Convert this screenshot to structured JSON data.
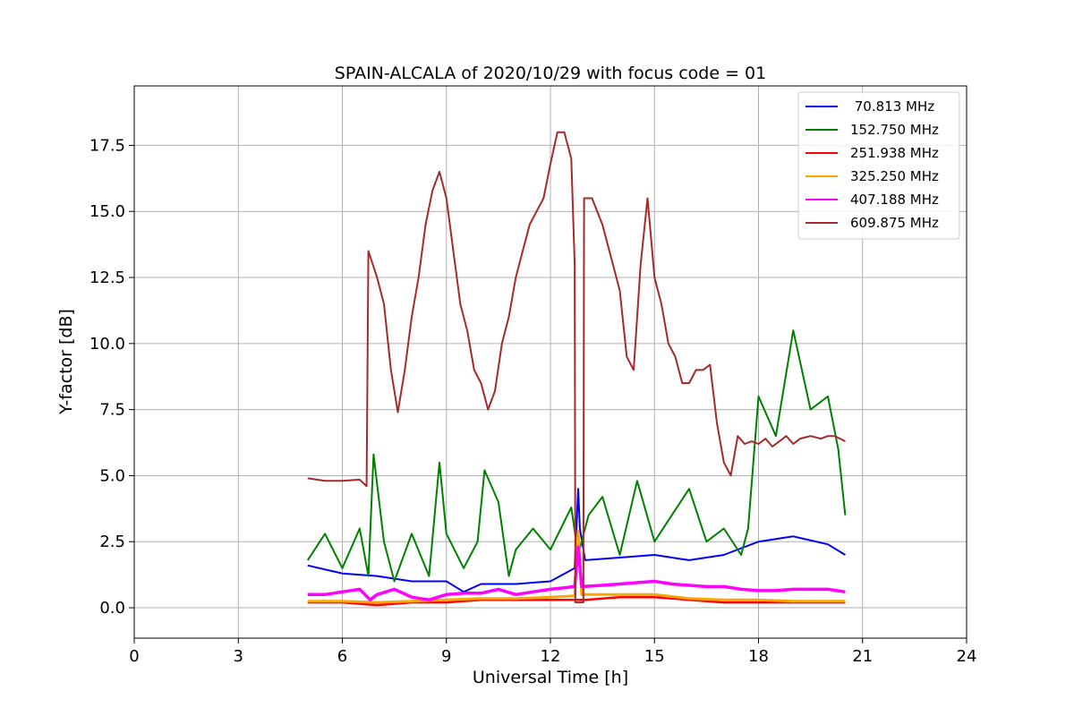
{
  "chart_data": {
    "type": "line",
    "title": "SPAIN-ALCALA of 2020/10/29 with focus code = 01",
    "xlabel": "Universal Time [h]",
    "ylabel": "Y-factor [dB]",
    "xlim": [
      0,
      24
    ],
    "ylim": [
      -1.15,
      19.75
    ],
    "xticks": [
      0,
      3,
      6,
      9,
      12,
      15,
      18,
      21,
      24
    ],
    "xtick_labels": [
      "0",
      "3",
      "6",
      "9",
      "12",
      "15",
      "18",
      "21",
      "24"
    ],
    "yticks": [
      0.0,
      2.5,
      5.0,
      7.5,
      10.0,
      12.5,
      15.0,
      17.5
    ],
    "ytick_labels": [
      "0.0",
      "2.5",
      "5.0",
      "7.5",
      "10.0",
      "12.5",
      "15.0",
      "17.5"
    ],
    "grid": true,
    "legend_position": "top-right",
    "series": [
      {
        "name": " 70.813 MHz",
        "color": "#0000ff",
        "points": [
          [
            5.0,
            1.6
          ],
          [
            6.0,
            1.3
          ],
          [
            7.0,
            1.2
          ],
          [
            8.0,
            1.0
          ],
          [
            9.0,
            1.0
          ],
          [
            9.5,
            0.6
          ],
          [
            10.0,
            0.9
          ],
          [
            11.0,
            0.9
          ],
          [
            12.0,
            1.0
          ],
          [
            12.7,
            1.5
          ],
          [
            12.8,
            4.5
          ],
          [
            12.85,
            3.0
          ],
          [
            13.0,
            1.8
          ],
          [
            14.0,
            1.9
          ],
          [
            15.0,
            2.0
          ],
          [
            16.0,
            1.8
          ],
          [
            17.0,
            2.0
          ],
          [
            18.0,
            2.5
          ],
          [
            19.0,
            2.7
          ],
          [
            20.0,
            2.4
          ],
          [
            20.5,
            2.0
          ]
        ]
      },
      {
        "name": "152.750 MHz",
        "color": "#008000",
        "points": [
          [
            5.0,
            1.8
          ],
          [
            5.5,
            2.8
          ],
          [
            6.0,
            1.5
          ],
          [
            6.5,
            3.0
          ],
          [
            6.75,
            1.2
          ],
          [
            6.9,
            5.8
          ],
          [
            7.2,
            2.5
          ],
          [
            7.5,
            1.0
          ],
          [
            8.0,
            2.8
          ],
          [
            8.5,
            1.2
          ],
          [
            8.8,
            5.5
          ],
          [
            9.0,
            2.8
          ],
          [
            9.5,
            1.5
          ],
          [
            9.9,
            2.5
          ],
          [
            10.1,
            5.2
          ],
          [
            10.5,
            4.0
          ],
          [
            10.8,
            1.2
          ],
          [
            11.0,
            2.2
          ],
          [
            11.5,
            3.0
          ],
          [
            12.0,
            2.2
          ],
          [
            12.6,
            3.8
          ],
          [
            12.8,
            2.0
          ],
          [
            13.1,
            3.5
          ],
          [
            13.5,
            4.2
          ],
          [
            14.0,
            2.0
          ],
          [
            14.5,
            4.8
          ],
          [
            15.0,
            2.5
          ],
          [
            15.5,
            3.5
          ],
          [
            16.0,
            4.5
          ],
          [
            16.5,
            2.5
          ],
          [
            17.0,
            3.0
          ],
          [
            17.5,
            2.0
          ],
          [
            17.7,
            3.0
          ],
          [
            18.0,
            8.0
          ],
          [
            18.5,
            6.5
          ],
          [
            19.0,
            10.5
          ],
          [
            19.5,
            7.5
          ],
          [
            20.0,
            8.0
          ],
          [
            20.3,
            6.0
          ],
          [
            20.5,
            3.5
          ]
        ]
      },
      {
        "name": "251.938 MHz",
        "color": "#ff0000",
        "points": [
          [
            5.0,
            0.2
          ],
          [
            6.0,
            0.2
          ],
          [
            7.0,
            0.1
          ],
          [
            8.0,
            0.2
          ],
          [
            9.0,
            0.2
          ],
          [
            10.0,
            0.3
          ],
          [
            11.0,
            0.3
          ],
          [
            12.0,
            0.3
          ],
          [
            12.7,
            0.3
          ],
          [
            13.0,
            0.3
          ],
          [
            14.0,
            0.4
          ],
          [
            15.0,
            0.4
          ],
          [
            16.0,
            0.3
          ],
          [
            17.0,
            0.2
          ],
          [
            18.0,
            0.2
          ],
          [
            19.0,
            0.2
          ],
          [
            20.0,
            0.2
          ],
          [
            20.5,
            0.2
          ]
        ]
      },
      {
        "name": "325.250 MHz",
        "color": "#ffa500",
        "points": [
          [
            5.0,
            0.25
          ],
          [
            6.0,
            0.25
          ],
          [
            7.0,
            0.2
          ],
          [
            8.0,
            0.25
          ],
          [
            9.0,
            0.3
          ],
          [
            10.0,
            0.35
          ],
          [
            11.0,
            0.35
          ],
          [
            12.0,
            0.4
          ],
          [
            12.7,
            0.45
          ],
          [
            12.8,
            2.9
          ],
          [
            12.9,
            0.5
          ],
          [
            13.0,
            0.5
          ],
          [
            14.0,
            0.5
          ],
          [
            15.0,
            0.5
          ],
          [
            16.0,
            0.35
          ],
          [
            17.0,
            0.3
          ],
          [
            18.0,
            0.3
          ],
          [
            19.0,
            0.25
          ],
          [
            20.0,
            0.25
          ],
          [
            20.5,
            0.25
          ]
        ]
      },
      {
        "name": "407.188 MHz",
        "color": "#ff00ff",
        "points": [
          [
            5.0,
            0.5
          ],
          [
            5.5,
            0.5
          ],
          [
            6.0,
            0.6
          ],
          [
            6.5,
            0.7
          ],
          [
            6.8,
            0.3
          ],
          [
            7.0,
            0.5
          ],
          [
            7.5,
            0.7
          ],
          [
            8.0,
            0.4
          ],
          [
            8.5,
            0.3
          ],
          [
            9.0,
            0.5
          ],
          [
            9.5,
            0.55
          ],
          [
            10.0,
            0.55
          ],
          [
            10.5,
            0.7
          ],
          [
            11.0,
            0.5
          ],
          [
            11.5,
            0.6
          ],
          [
            12.0,
            0.7
          ],
          [
            12.7,
            0.8
          ],
          [
            12.8,
            2.3
          ],
          [
            12.9,
            0.8
          ],
          [
            13.5,
            0.85
          ],
          [
            14.0,
            0.9
          ],
          [
            14.5,
            0.95
          ],
          [
            15.0,
            1.0
          ],
          [
            15.5,
            0.9
          ],
          [
            16.0,
            0.85
          ],
          [
            16.5,
            0.8
          ],
          [
            17.0,
            0.8
          ],
          [
            17.5,
            0.7
          ],
          [
            18.0,
            0.65
          ],
          [
            18.5,
            0.65
          ],
          [
            19.0,
            0.7
          ],
          [
            19.5,
            0.7
          ],
          [
            20.0,
            0.7
          ],
          [
            20.5,
            0.6
          ]
        ]
      },
      {
        "name": "609.875 MHz",
        "color": "#a52a2a",
        "points": [
          [
            5.0,
            4.9
          ],
          [
            5.5,
            4.8
          ],
          [
            6.0,
            4.8
          ],
          [
            6.5,
            4.85
          ],
          [
            6.7,
            4.6
          ],
          [
            6.75,
            13.5
          ],
          [
            6.9,
            12.9
          ],
          [
            7.0,
            12.5
          ],
          [
            7.2,
            11.5
          ],
          [
            7.4,
            9.0
          ],
          [
            7.6,
            7.4
          ],
          [
            7.8,
            9.0
          ],
          [
            8.0,
            11.0
          ],
          [
            8.2,
            12.5
          ],
          [
            8.4,
            14.5
          ],
          [
            8.6,
            15.8
          ],
          [
            8.8,
            16.5
          ],
          [
            9.0,
            15.5
          ],
          [
            9.2,
            13.5
          ],
          [
            9.4,
            11.5
          ],
          [
            9.6,
            10.5
          ],
          [
            9.8,
            9.0
          ],
          [
            10.0,
            8.5
          ],
          [
            10.2,
            7.5
          ],
          [
            10.4,
            8.2
          ],
          [
            10.6,
            10.0
          ],
          [
            10.8,
            11.0
          ],
          [
            11.0,
            12.5
          ],
          [
            11.2,
            13.5
          ],
          [
            11.4,
            14.5
          ],
          [
            11.6,
            15.0
          ],
          [
            11.8,
            15.5
          ],
          [
            12.0,
            16.8
          ],
          [
            12.2,
            18.0
          ],
          [
            12.4,
            18.0
          ],
          [
            12.6,
            17.0
          ],
          [
            12.7,
            13.0
          ],
          [
            12.72,
            0.2
          ],
          [
            12.95,
            0.2
          ],
          [
            12.97,
            15.5
          ],
          [
            13.2,
            15.5
          ],
          [
            13.5,
            14.5
          ],
          [
            13.8,
            13.0
          ],
          [
            14.0,
            12.0
          ],
          [
            14.2,
            9.5
          ],
          [
            14.4,
            9.0
          ],
          [
            14.6,
            13.0
          ],
          [
            14.8,
            15.5
          ],
          [
            15.0,
            12.5
          ],
          [
            15.2,
            11.5
          ],
          [
            15.4,
            10.0
          ],
          [
            15.6,
            9.5
          ],
          [
            15.8,
            8.5
          ],
          [
            16.0,
            8.5
          ],
          [
            16.2,
            9.0
          ],
          [
            16.4,
            9.0
          ],
          [
            16.6,
            9.2
          ],
          [
            16.8,
            7.0
          ],
          [
            17.0,
            5.5
          ],
          [
            17.2,
            5.0
          ],
          [
            17.4,
            6.5
          ],
          [
            17.6,
            6.2
          ],
          [
            17.8,
            6.3
          ],
          [
            18.0,
            6.2
          ],
          [
            18.2,
            6.4
          ],
          [
            18.4,
            6.1
          ],
          [
            18.6,
            6.3
          ],
          [
            18.8,
            6.5
          ],
          [
            19.0,
            6.2
          ],
          [
            19.2,
            6.4
          ],
          [
            19.5,
            6.5
          ],
          [
            19.8,
            6.4
          ],
          [
            20.0,
            6.5
          ],
          [
            20.2,
            6.5
          ],
          [
            20.5,
            6.3
          ]
        ]
      }
    ]
  }
}
